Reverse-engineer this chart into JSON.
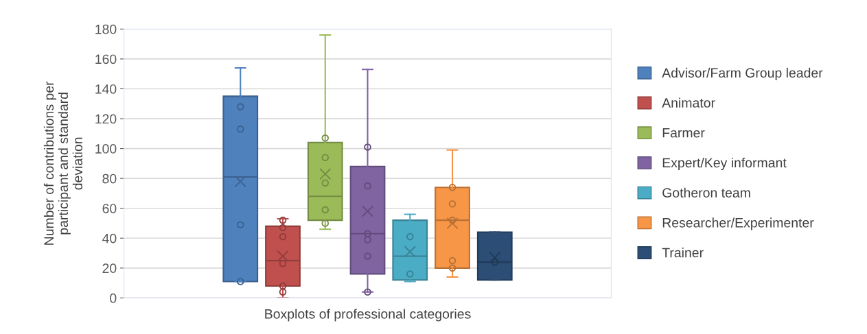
{
  "chart_data": {
    "type": "box",
    "xlabel": "Boxplots of professional categories",
    "ylabel": "Number of contributions per\nparticipant and standard\ndeviation",
    "categories": [
      null
    ],
    "ylim": [
      0,
      180
    ],
    "yticks": [
      0,
      20,
      40,
      60,
      80,
      100,
      120,
      140,
      160,
      180
    ],
    "grid": "y",
    "legend": "right",
    "series": [
      {
        "name": "Advisor/Farm Group leader",
        "color": "#4f81bd",
        "boxes": [
          {
            "low": 11,
            "q1": 11,
            "median": 81,
            "q3": 135,
            "high": 154,
            "mean": 78,
            "outliers": [
              128,
              113,
              49,
              11
            ]
          }
        ]
      },
      {
        "name": "Animator",
        "color": "#c0504d",
        "boxes": [
          {
            "low": 0,
            "q1": 8,
            "median": 25,
            "q3": 48,
            "high": 53,
            "mean": 28,
            "outliers": [
              52,
              47,
              41,
              23,
              8,
              4
            ]
          }
        ]
      },
      {
        "name": "Farmer",
        "color": "#9bbb59",
        "boxes": [
          {
            "low": 46,
            "q1": 52,
            "median": 68,
            "q3": 104,
            "high": 176,
            "mean": 83,
            "outliers": [
              107,
              94,
              77,
              59,
              50
            ]
          }
        ]
      },
      {
        "name": "Expert/Key informant",
        "color": "#8064a2",
        "boxes": [
          {
            "low": 4,
            "q1": 16,
            "median": 43,
            "q3": 88,
            "high": 153,
            "mean": 58,
            "outliers": [
              101,
              75,
              43,
              39,
              28,
              4
            ]
          }
        ]
      },
      {
        "name": "Gotheron team",
        "color": "#4bacc6",
        "boxes": [
          {
            "low": 11,
            "q1": 12,
            "median": 28,
            "q3": 52,
            "high": 56,
            "mean": 31,
            "outliers": [
              41,
              16
            ]
          }
        ]
      },
      {
        "name": "Researcher/Experimenter",
        "color": "#f79646",
        "boxes": [
          {
            "low": 14,
            "q1": 20,
            "median": 52,
            "q3": 74,
            "high": 99,
            "mean": 50,
            "outliers": [
              74,
              63,
              52,
              25,
              20
            ]
          }
        ]
      },
      {
        "name": "Trainer",
        "color": "#2c4d75",
        "boxes": [
          {
            "low": 12,
            "q1": 12,
            "median": 24,
            "q3": 44,
            "high": 44,
            "mean": 27,
            "outliers": [
              24
            ]
          }
        ]
      }
    ]
  }
}
